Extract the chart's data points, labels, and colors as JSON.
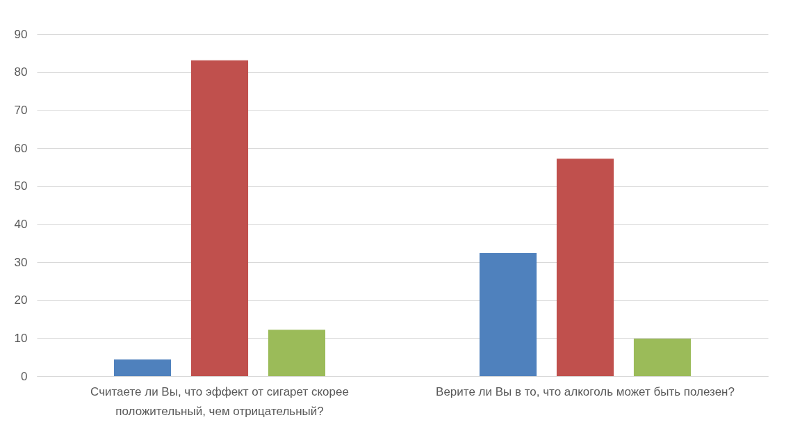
{
  "chart_data": {
    "type": "bar",
    "categories": [
      "Считаете ли Вы, что эффект от сигарет скорее положительный, чем отрицательный?",
      "Верите ли Вы в то, что алкоголь может быть полезен?"
    ],
    "series": [
      {
        "color": "#4f81bd",
        "values": [
          4.4,
          32.4
        ]
      },
      {
        "color": "#c0504d",
        "values": [
          83.1,
          57.2
        ]
      },
      {
        "color": "#9bbb59",
        "values": [
          12.2,
          9.9
        ]
      }
    ],
    "ylim": [
      0,
      90
    ],
    "yticks": [
      0,
      10,
      20,
      30,
      40,
      50,
      60,
      70,
      80,
      90
    ],
    "grid": "y",
    "legend": false
  }
}
